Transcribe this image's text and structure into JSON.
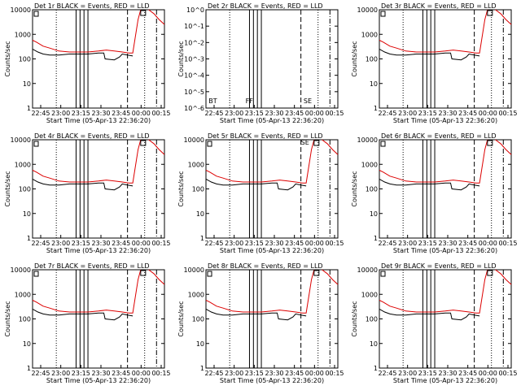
{
  "chart_data": [
    {
      "title": "Det 1r BLACK = Events, RED = LLD",
      "type": "line",
      "ylabel": "Counts/sec",
      "xlabel": "Start Time (05-Apr-13 22:36:20)",
      "xticks": [
        "22:45",
        "23:00",
        "23:15",
        "23:30",
        "23:45",
        "00:00",
        "00:15"
      ],
      "ylog": true,
      "yticks": [
        "1",
        "10",
        "100",
        "1000",
        "10000"
      ],
      "labels": [
        "",
        ""
      ]
    },
    {
      "title": "Det 2r BLACK = Events, RED = LLD",
      "type": "line",
      "ylabel": "Counts/sec",
      "xlabel": "Start Time (05-Apr-13 22:36:20)",
      "xticks": [
        "22:45",
        "23:00",
        "23:15",
        "23:30",
        "23:45",
        "00:00",
        "00:15"
      ],
      "ylog": true,
      "yticks": [
        "10^-6",
        "10^-5",
        "10^-4",
        "10^-3",
        "10^-2",
        "10^-1",
        "10^0"
      ],
      "labels": [
        "BT",
        "FF",
        "SE"
      ]
    },
    {
      "title": "Det 3r BLACK = Events, RED = LLD",
      "type": "line",
      "ylabel": "Counts/sec",
      "xlabel": "Start Time (05-Apr-13 22:36:20)",
      "xticks": [
        "22:45",
        "23:00",
        "23:15",
        "23:30",
        "23:45",
        "00:00",
        "00:15"
      ],
      "ylog": true,
      "yticks": [
        "1",
        "10",
        "100",
        "1000",
        "10000"
      ],
      "labels": [
        "",
        ""
      ]
    },
    {
      "title": "Det 4r BLACK = Events, RED = LLD",
      "type": "line",
      "ylabel": "Counts/sec",
      "xlabel": "Start Time (05-Apr-13 22:36:20)",
      "xticks": [
        "22:45",
        "23:00",
        "23:15",
        "23:30",
        "23:45",
        "00:00",
        "00:15"
      ],
      "ylog": true,
      "yticks": [
        "1",
        "10",
        "100",
        "1000",
        "10000"
      ],
      "labels": [
        "",
        ""
      ]
    },
    {
      "title": "Det 5r BLACK = Events, RED = LLD",
      "type": "line",
      "ylabel": "Counts/sec",
      "xlabel": "Start Time (05-Apr-13 22:36:20)",
      "xticks": [
        "22:45",
        "23:00",
        "23:15",
        "23:30",
        "23:45",
        "00:00",
        "00:15"
      ],
      "ylog": true,
      "yticks": [
        "1",
        "10",
        "100",
        "1000",
        "10000"
      ],
      "labels": [
        "",
        "SE"
      ]
    },
    {
      "title": "Det 6r BLACK = Events, RED = LLD",
      "type": "line",
      "ylabel": "Counts/sec",
      "xlabel": "Start Time (05-Apr-13 22:36:20)",
      "xticks": [
        "22:45",
        "23:00",
        "23:15",
        "23:30",
        "23:45",
        "00:00",
        "00:15"
      ],
      "ylog": true,
      "yticks": [
        "1",
        "10",
        "100",
        "1000",
        "10000"
      ],
      "labels": [
        "",
        ""
      ]
    },
    {
      "title": "Det 7r BLACK = Events, RED = LLD",
      "type": "line",
      "ylabel": "Counts/sec",
      "xlabel": "Start Time (05-Apr-13 22:36:20)",
      "xticks": [
        "22:45",
        "23:00",
        "23:15",
        "23:30",
        "23:45",
        "00:00",
        "00:15"
      ],
      "ylog": true,
      "yticks": [
        "1",
        "10",
        "100",
        "1000",
        "10000"
      ],
      "labels": [
        "",
        ""
      ]
    },
    {
      "title": "Det 8r BLACK = Events, RED = LLD",
      "type": "line",
      "ylabel": "Counts/sec",
      "xlabel": "Start Time (05-Apr-13 22:36:20)",
      "xticks": [
        "22:45",
        "23:00",
        "23:15",
        "23:30",
        "23:45",
        "00:00",
        "00:15"
      ],
      "ylog": true,
      "yticks": [
        "1",
        "10",
        "100",
        "1000",
        "10000"
      ],
      "labels": [
        "",
        ""
      ]
    },
    {
      "title": "Det 9r BLACK = Events, RED = LLD",
      "type": "line",
      "ylabel": "Counts/sec",
      "xlabel": "Start Time (05-Apr-13 22:36:20)",
      "xticks": [
        "22:45",
        "23:00",
        "23:15",
        "23:30",
        "23:45",
        "00:00",
        "00:15"
      ],
      "ylog": true,
      "yticks": [
        "1",
        "10",
        "100",
        "1000",
        "10000"
      ],
      "labels": [
        "",
        ""
      ]
    }
  ],
  "colors": {
    "events": "#000000",
    "lld": "#dd0000",
    "axes": "#000000",
    "background": "#ffffff"
  }
}
